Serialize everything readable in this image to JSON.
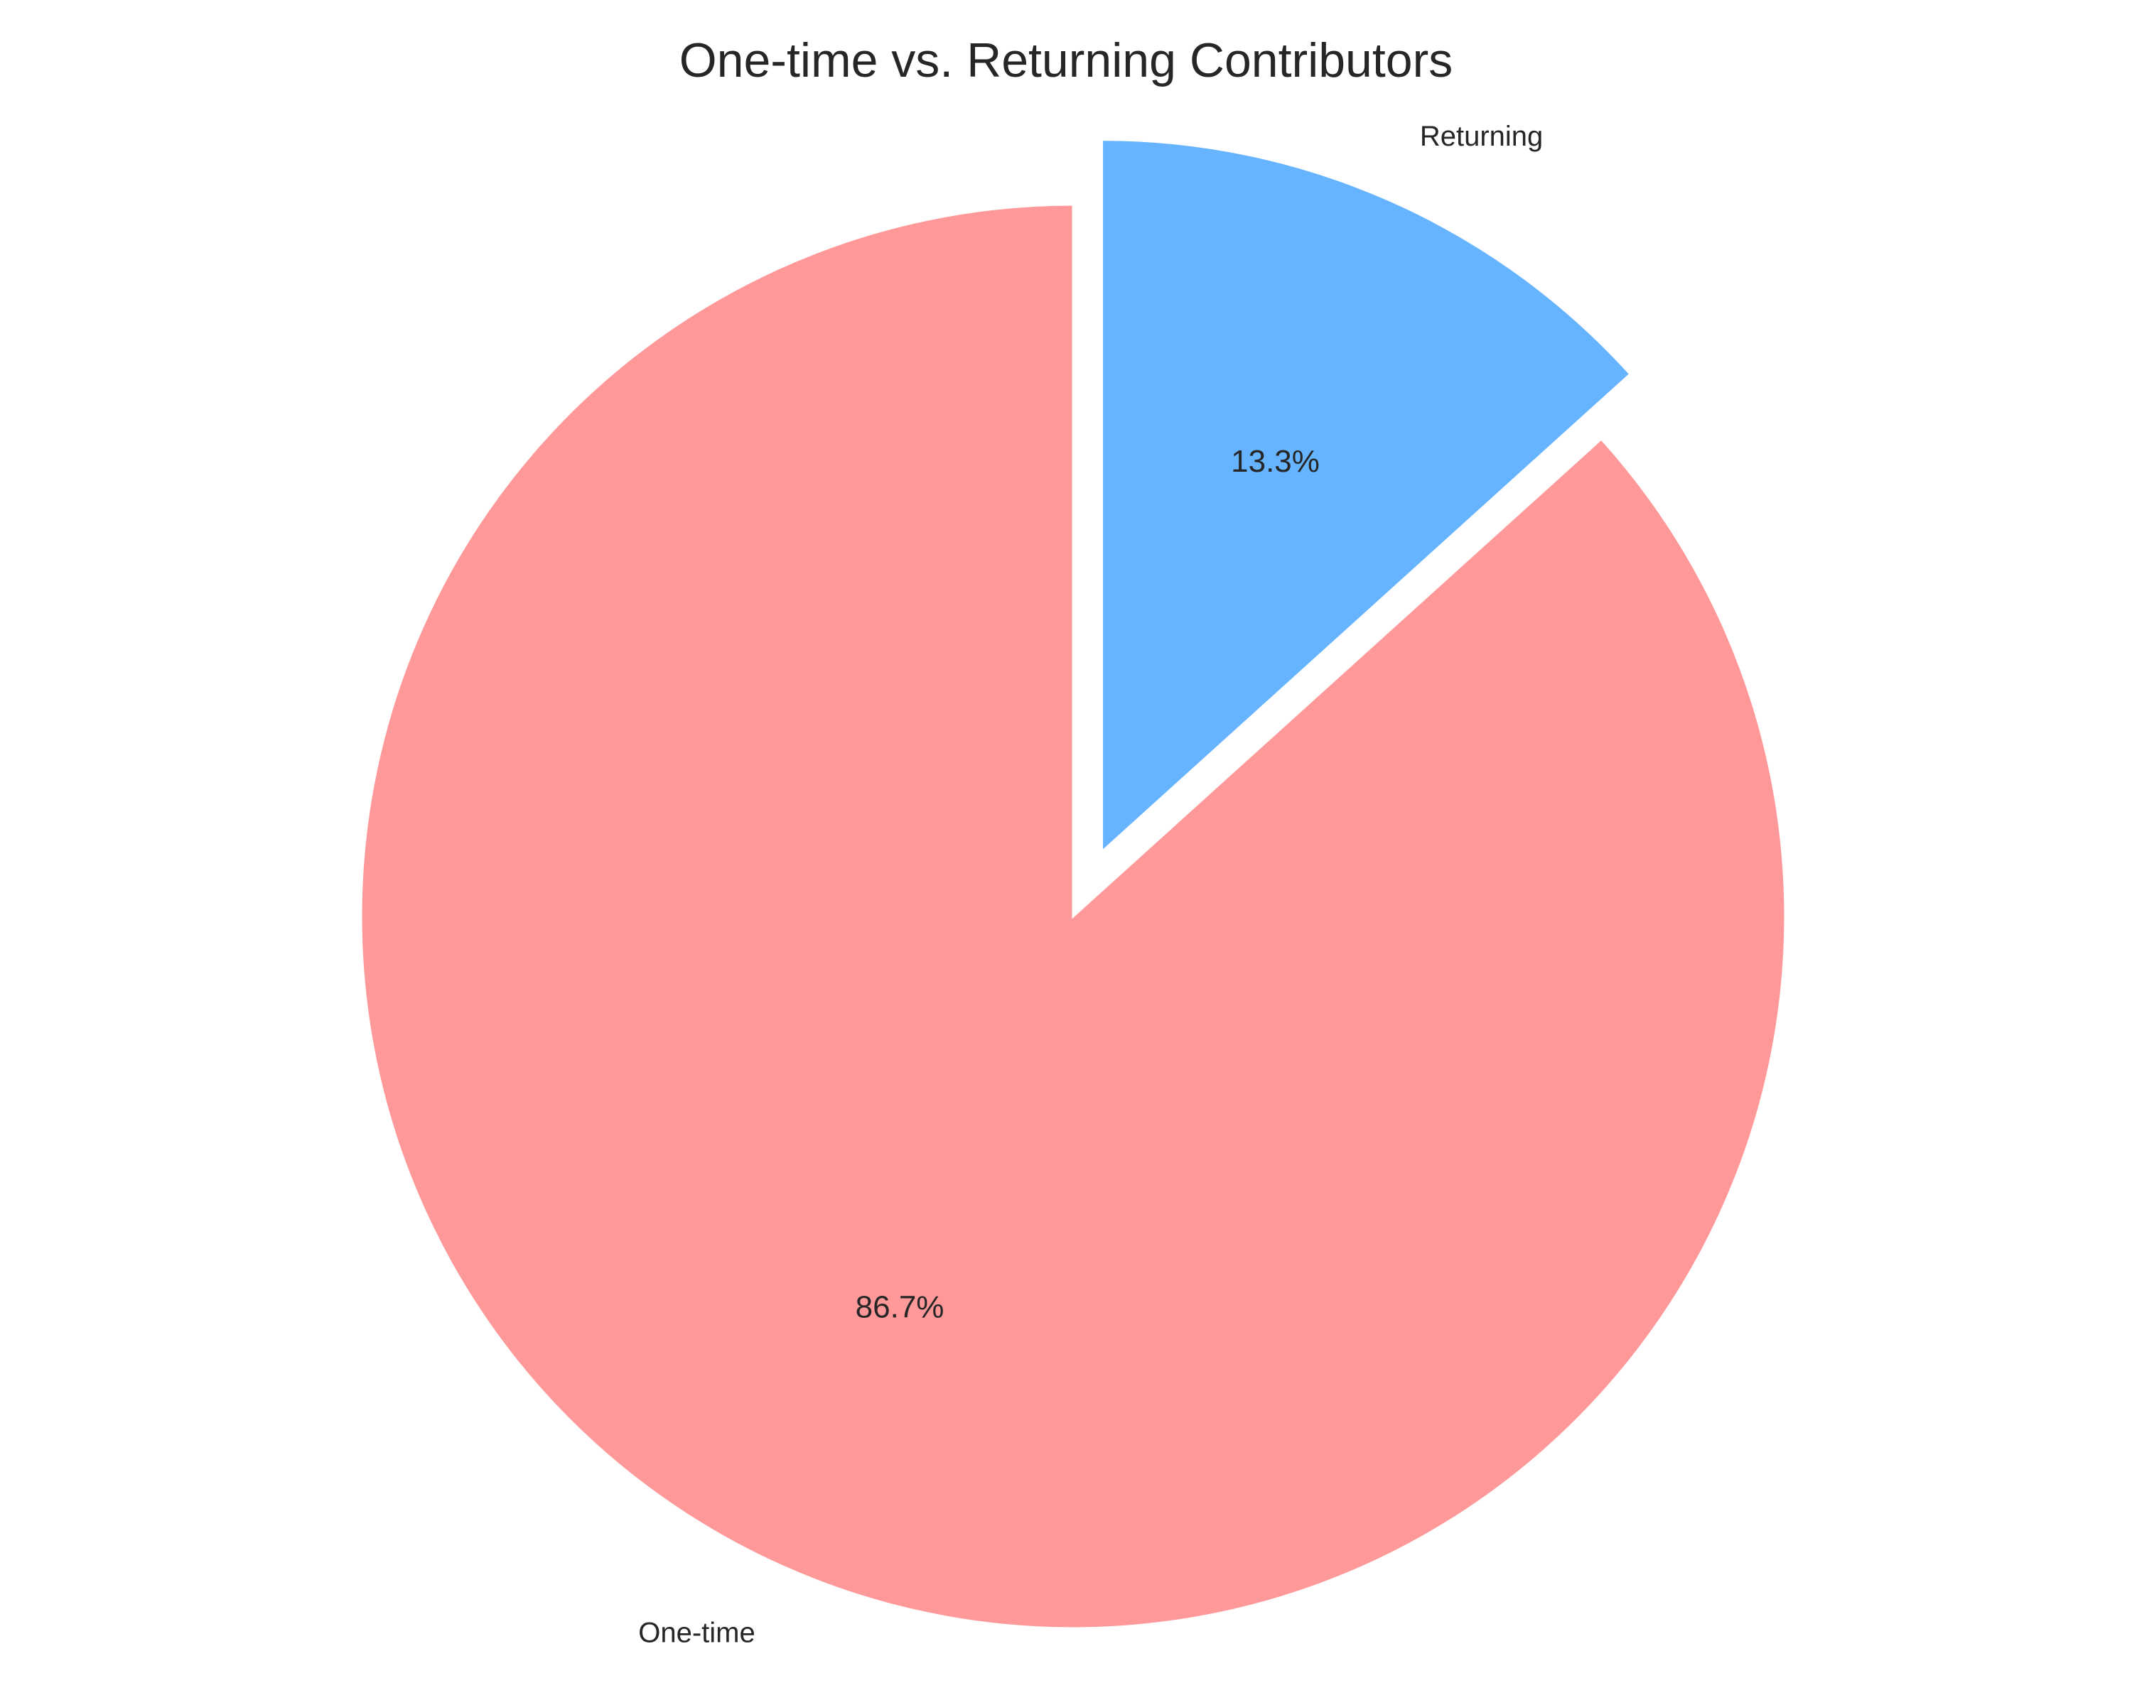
{
  "chart_data": {
    "type": "pie",
    "title": "One-time vs. Returning Contributors",
    "categories": [
      "One-time",
      "Returning"
    ],
    "values": [
      86.7,
      13.3
    ],
    "value_labels": [
      "86.7%",
      "13.3%"
    ],
    "colors": [
      "#ff9999",
      "#66b3ff"
    ],
    "exploded": [
      false,
      true
    ],
    "start_angle": "top (12 o'clock)",
    "direction": "clockwise from top for Returning",
    "legend": "none"
  }
}
